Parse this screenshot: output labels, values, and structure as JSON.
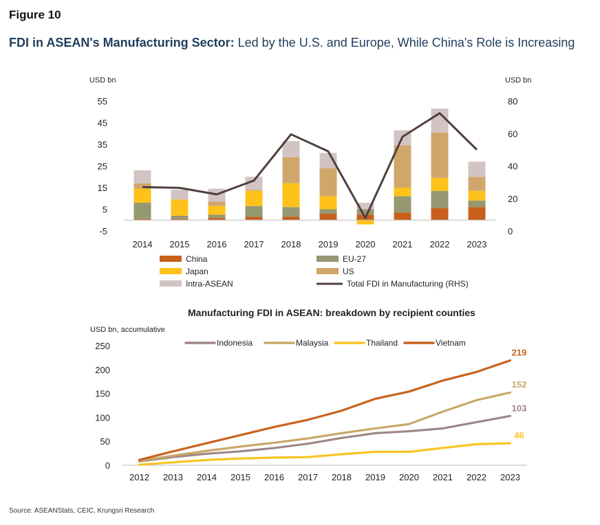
{
  "figure_label": "Figure 10",
  "title_bold": "FDI in ASEAN's Manufacturing Sector:",
  "title_rest": " Led by the U.S. and Europe, While China's Role is Increasing",
  "source": "Source:  ASEANStats, CEIC, Krungsri Research",
  "colors": {
    "china": "#c8601c",
    "eu27": "#969872",
    "japan": "#ffc21a",
    "us": "#cfa76a",
    "intra_asean": "#d3c4c4",
    "total": "#4f3f3d",
    "indonesia": "#9e8786",
    "malaysia": "#c9a868",
    "thailand": "#fbc423",
    "vietnam": "#c9621e"
  },
  "chart_data": [
    {
      "type": "bar",
      "stacked": true,
      "title": "",
      "ylabel": "USD bn",
      "y2label": "USD bn",
      "ylim": [
        -5,
        55
      ],
      "yticks": [
        -5,
        5,
        15,
        25,
        35,
        45,
        55
      ],
      "y2lim": [
        0,
        80
      ],
      "y2ticks": [
        0,
        20,
        40,
        60,
        80
      ],
      "legend_position": "bottom",
      "categories": [
        "2014",
        "2015",
        "2016",
        "2017",
        "2018",
        "2019",
        "2020",
        "2021",
        "2022",
        "2023"
      ],
      "series": [
        {
          "name": "China",
          "key": "china",
          "values": [
            0.5,
            0.5,
            1.0,
            1.5,
            1.5,
            3.0,
            2.5,
            3.5,
            5.5,
            6.0
          ]
        },
        {
          "name": "EU-27",
          "key": "eu27",
          "values": [
            7.5,
            1.5,
            1.5,
            5.0,
            4.5,
            2.0,
            2.5,
            7.5,
            8.0,
            3.0
          ]
        },
        {
          "name": "Japan",
          "key": "japan",
          "values": [
            6.5,
            7.5,
            4.0,
            7.0,
            11.0,
            6.0,
            -2.0,
            4.0,
            6.0,
            4.5
          ]
        },
        {
          "name": "US",
          "key": "us",
          "values": [
            2.5,
            0,
            2.0,
            0.5,
            12.0,
            13.0,
            0,
            19.5,
            21.0,
            6.5
          ]
        },
        {
          "name": "Intra-ASEAN",
          "key": "intra_asean",
          "values": [
            6.0,
            4.5,
            6.0,
            6.0,
            7.5,
            7.0,
            3.0,
            7.0,
            11.0,
            7.0
          ]
        }
      ],
      "line_series": {
        "name": "Total FDI in Manufacturing (RHS)",
        "axis": "right",
        "values": [
          27.0,
          26.5,
          22.5,
          31.0,
          59.5,
          49.0,
          8.0,
          58.0,
          72.5,
          50.0
        ]
      }
    },
    {
      "type": "line",
      "title": "Manufacturing FDI in ASEAN: breakdown by recipient counties",
      "ylabel": "USD bn, accumulative",
      "ylim": [
        0,
        250
      ],
      "yticks": [
        0,
        50,
        100,
        150,
        200,
        250
      ],
      "legend_position": "top",
      "x": [
        "2012",
        "2013",
        "2014",
        "2015",
        "2016",
        "2017",
        "2018",
        "2019",
        "2020",
        "2021",
        "2022",
        "2023"
      ],
      "series": [
        {
          "name": "Indonesia",
          "key": "indonesia",
          "values": [
            8,
            17,
            24,
            29,
            36,
            45,
            57,
            67,
            71,
            77,
            90,
            103
          ],
          "end_label": "103"
        },
        {
          "name": "Malaysia",
          "key": "malaysia",
          "values": [
            9,
            20,
            30,
            39,
            47,
            56,
            67,
            77,
            86,
            112,
            136,
            152
          ],
          "end_label": "152"
        },
        {
          "name": "Thailand",
          "key": "thailand",
          "values": [
            1,
            6,
            11,
            14,
            16,
            17,
            23,
            28,
            28,
            36,
            44,
            46
          ],
          "end_label": "46"
        },
        {
          "name": "Vietnam",
          "key": "vietnam",
          "values": [
            11,
            29,
            46,
            63,
            80,
            95,
            114,
            139,
            154,
            177,
            195,
            219
          ],
          "end_label": "219"
        }
      ]
    }
  ]
}
